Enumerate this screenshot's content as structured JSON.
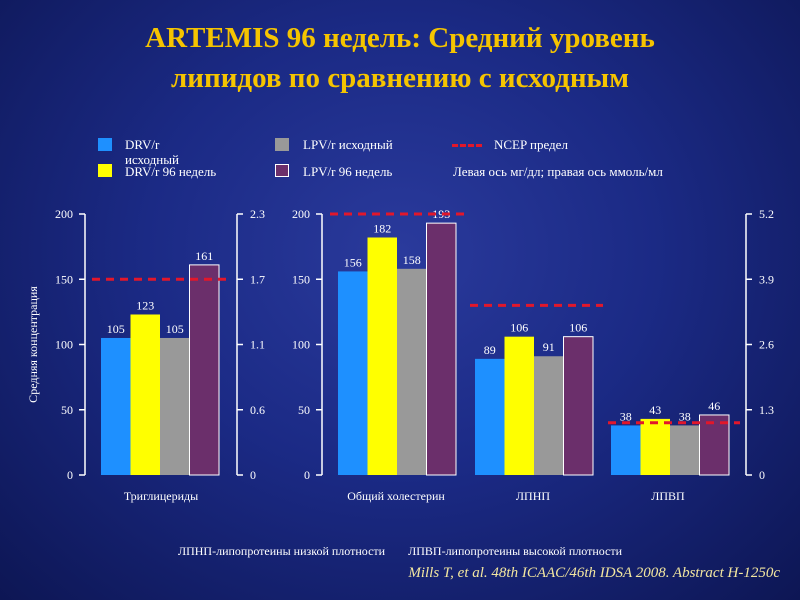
{
  "title": {
    "line1": "ARTEMIS 96 недель: Средний уровень",
    "line2": "липидов по сравнению с исходным"
  },
  "legend": {
    "drv_base": "DRV/r исходный",
    "drv_96": "DRV/r 96 недель",
    "lpv_base": "LPV/r исходный",
    "lpv_96": "LPV/r 96 недель",
    "ncep": "NCEP предел",
    "axis_note": "Левая ось мг/дл; правая ось ммоль/мл"
  },
  "colors": {
    "drv_base": "#1e90ff",
    "drv_96": "#ffff00",
    "lpv_base": "#999999",
    "lpv_96": "#6b2f6b",
    "ncep": "#e2172b",
    "title": "#f5c400"
  },
  "chart_data": [
    {
      "type": "bar",
      "ylabel": "Средняя концентрация",
      "ylim": [
        0,
        200
      ],
      "y_ticks": [
        "0",
        "50",
        "100",
        "150",
        "200"
      ],
      "y2_ticks": [
        "0",
        "0.6",
        "1.1",
        "1.7",
        "2.3"
      ],
      "categories": [
        "Триглицериды"
      ],
      "series": [
        {
          "name": "DRV/r исходный",
          "values": [
            105
          ]
        },
        {
          "name": "DRV/r 96 недель",
          "values": [
            123
          ]
        },
        {
          "name": "LPV/r исходный",
          "values": [
            105
          ]
        },
        {
          "name": "LPV/r 96 недель",
          "values": [
            161
          ]
        }
      ],
      "ncep": [
        150
      ]
    },
    {
      "type": "bar",
      "ylim": [
        0,
        200
      ],
      "y_ticks": [
        "0",
        "50",
        "100",
        "150",
        "200"
      ],
      "y2_ticks": [
        "0",
        "1.3",
        "2.6",
        "3.9",
        "5.2"
      ],
      "categories": [
        "Общий холестерин",
        "ЛПНП",
        "ЛПВП"
      ],
      "series": [
        {
          "name": "DRV/r исходный",
          "values": [
            156,
            89,
            38
          ]
        },
        {
          "name": "DRV/r 96 недель",
          "values": [
            182,
            106,
            43
          ]
        },
        {
          "name": "LPV/r исходный",
          "values": [
            158,
            91,
            38
          ]
        },
        {
          "name": "LPV/r 96 недель",
          "values": [
            193,
            106,
            46
          ]
        }
      ],
      "ncep": [
        200,
        130,
        40
      ]
    }
  ],
  "footnote": {
    "ldl": "ЛПНП-липопротеины низкой плотности",
    "hdl": "ЛПВП-липопротеины высокой плотности"
  },
  "citation": "Mills T, et al. 48th ICAAC/46th IDSA 2008. Abstract H-1250c"
}
